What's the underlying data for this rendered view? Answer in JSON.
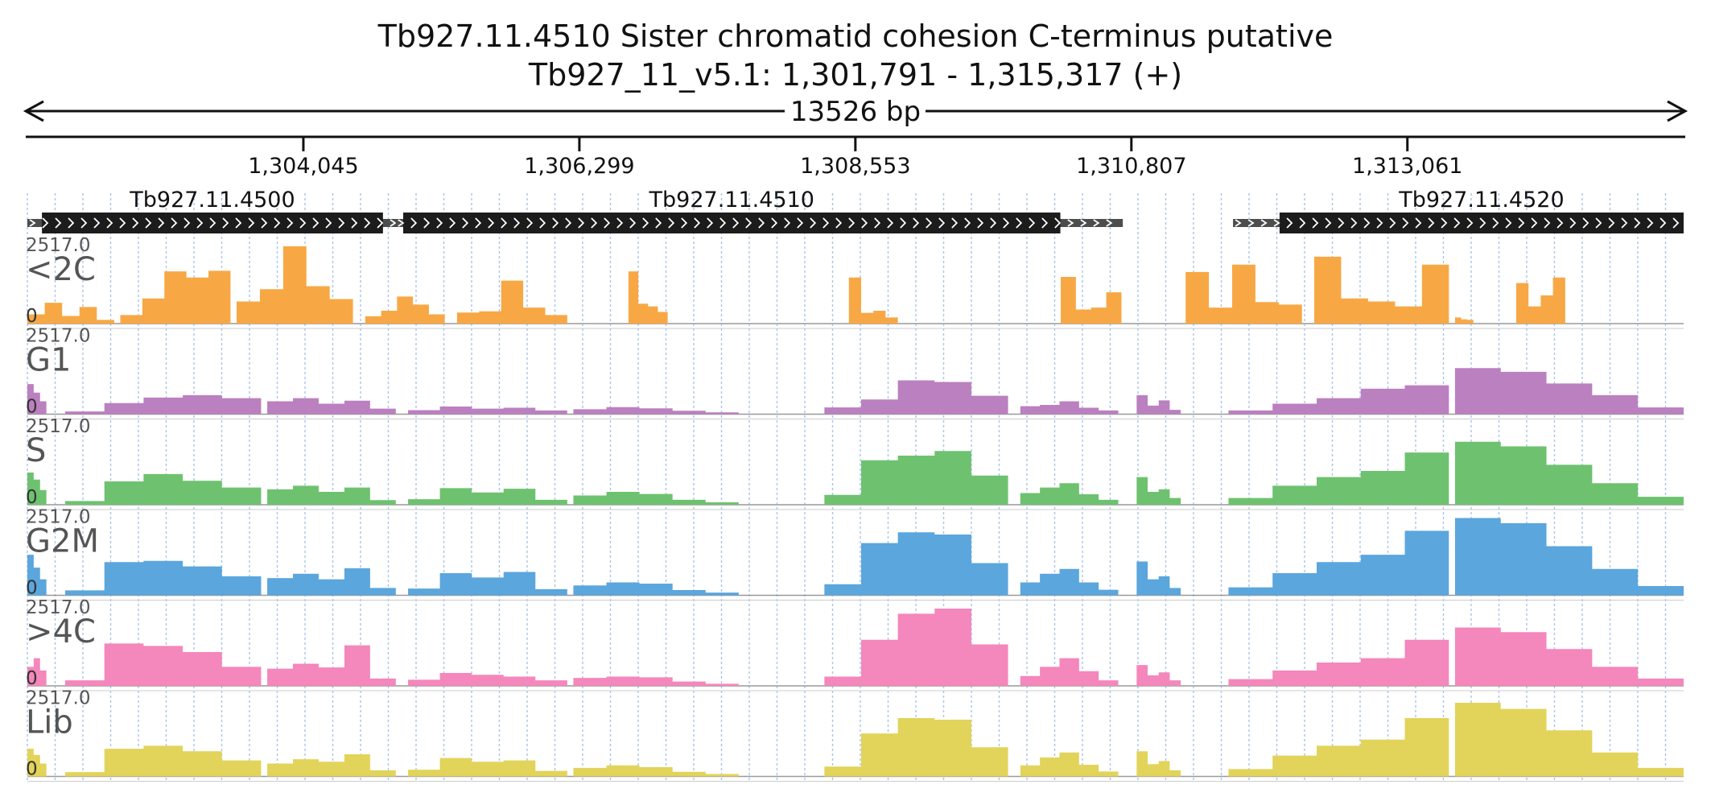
{
  "chart_data": {
    "type": "area",
    "title": "Tb927.11.4510  Sister chromatid cohesion C-terminus  putative",
    "subtitle": "Tb927_11_v5.1: 1,301,791 - 1,315,317 (+)",
    "span_label": "13526 bp",
    "region": {
      "start": 1301791,
      "end": 1315317
    },
    "ticks": [
      {
        "pos": 1304045,
        "label": "1,304,045"
      },
      {
        "pos": 1306299,
        "label": "1,306,299"
      },
      {
        "pos": 1308553,
        "label": "1,308,553"
      },
      {
        "pos": 1310807,
        "label": "1,310,807"
      },
      {
        "pos": 1313061,
        "label": "1,313,061"
      }
    ],
    "genes": [
      {
        "name": "Tb927.11.4500",
        "cds_start": 1301910,
        "cds_end": 1304695,
        "utr_start": 1301791,
        "utr_end": 1304900
      },
      {
        "name": "Tb927.11.4510",
        "cds_start": 1304860,
        "cds_end": 1310227,
        "utr_start": 1304800,
        "utr_end": 1310737
      },
      {
        "name": "Tb927.11.4520",
        "cds_start": 1312017,
        "cds_end": 1315317,
        "utr_start": 1311637,
        "utr_end": 1315317
      }
    ],
    "y_scale_max_label": "2517.0",
    "y_scale_min_label": "0",
    "grid": true,
    "segment_starts": [
      1301791,
      1302200,
      1302750,
      1303300,
      1304000,
      1304700,
      1305400,
      1306100,
      1307200,
      1307700,
      1308100,
      1308800,
      1309500,
      1310250,
      1310750,
      1311550,
      1312300,
      1312900,
      1313600,
      1314250,
      1314900
    ],
    "series": [
      {
        "name": "<2C",
        "color": "#f7a844",
        "segments": [
          {
            "start": 1301791,
            "end": 1302500,
            "values": [
              300,
              680,
              250,
              540,
              120
            ]
          },
          {
            "start": 1302550,
            "end": 1303450,
            "values": [
              280,
              820,
              1700,
              1500,
              1720
            ]
          },
          {
            "start": 1303500,
            "end": 1304450,
            "values": [
              720,
              1120,
              2517,
              1220,
              800
            ]
          },
          {
            "start": 1304550,
            "end": 1305200,
            "values": [
              240,
              420,
              880,
              620,
              300
            ]
          },
          {
            "start": 1305300,
            "end": 1306200,
            "values": [
              360,
              400,
              1400,
              520,
              280
            ]
          },
          {
            "start": 1306700,
            "end": 1307100,
            "values": [
              1700,
              650,
              560,
              380,
              0
            ]
          },
          {
            "start": 1308500,
            "end": 1309000,
            "values": [
              1500,
              350,
              420,
              200,
              0
            ]
          },
          {
            "start": 1310230,
            "end": 1310850,
            "values": [
              1520,
              460,
              520,
              1020,
              0
            ]
          },
          {
            "start": 1311250,
            "end": 1312200,
            "values": [
              1680,
              520,
              1920,
              700,
              620
            ]
          },
          {
            "start": 1312300,
            "end": 1313400,
            "values": [
              2180,
              820,
              720,
              560,
              1920
            ]
          },
          {
            "start": 1313450,
            "end": 1313700,
            "values": [
              200,
              140,
              120,
              0,
              0
            ]
          },
          {
            "start": 1313950,
            "end": 1314450,
            "values": [
              1320,
              560,
              920,
              1500,
              0
            ]
          }
        ]
      },
      {
        "name": "G1",
        "color": "#bb80bf",
        "segments": [
          {
            "start": 1301791,
            "end": 1302050,
            "values": [
              980,
              700,
              420,
              0,
              0
            ]
          },
          {
            "start": 1302100,
            "end": 1303700,
            "values": [
              90,
              360,
              540,
              620,
              520
            ]
          },
          {
            "start": 1303750,
            "end": 1304800,
            "values": [
              420,
              520,
              340,
              440,
              180
            ]
          },
          {
            "start": 1304900,
            "end": 1306200,
            "values": [
              130,
              250,
              180,
              210,
              120
            ]
          },
          {
            "start": 1306250,
            "end": 1307600,
            "values": [
              160,
              230,
              190,
              110,
              60
            ]
          },
          {
            "start": 1308300,
            "end": 1309800,
            "values": [
              220,
              480,
              1100,
              1050,
              600
            ]
          },
          {
            "start": 1309900,
            "end": 1310700,
            "values": [
              260,
              300,
              420,
              210,
              120
            ]
          },
          {
            "start": 1310850,
            "end": 1311300,
            "values": [
              620,
              280,
              450,
              140,
              0
            ]
          },
          {
            "start": 1311600,
            "end": 1313400,
            "values": [
              120,
              340,
              520,
              830,
              940
            ]
          },
          {
            "start": 1313450,
            "end": 1315317,
            "values": [
              1500,
              1380,
              1000,
              620,
              220
            ]
          }
        ]
      },
      {
        "name": "S",
        "color": "#6ec26f",
        "segments": [
          {
            "start": 1301791,
            "end": 1302050,
            "values": [
              1050,
              820,
              480,
              0,
              0
            ]
          },
          {
            "start": 1302100,
            "end": 1303700,
            "values": [
              120,
              760,
              1000,
              780,
              560
            ]
          },
          {
            "start": 1303750,
            "end": 1304800,
            "values": [
              500,
              620,
              420,
              560,
              150
            ]
          },
          {
            "start": 1304900,
            "end": 1306200,
            "values": [
              180,
              540,
              400,
              520,
              160
            ]
          },
          {
            "start": 1306250,
            "end": 1307600,
            "values": [
              300,
              420,
              350,
              160,
              80
            ]
          },
          {
            "start": 1308300,
            "end": 1309800,
            "values": [
              320,
              1450,
              1600,
              1750,
              950
            ]
          },
          {
            "start": 1309900,
            "end": 1310700,
            "values": [
              380,
              560,
              700,
              340,
              160
            ]
          },
          {
            "start": 1310850,
            "end": 1311300,
            "values": [
              900,
              420,
              500,
              220,
              0
            ]
          },
          {
            "start": 1311600,
            "end": 1313400,
            "values": [
              220,
              620,
              900,
              1100,
              1700
            ]
          },
          {
            "start": 1313450,
            "end": 1315317,
            "values": [
              2050,
              1900,
              1300,
              700,
              260
            ]
          }
        ]
      },
      {
        "name": "G2M",
        "color": "#5ba6dd",
        "segments": [
          {
            "start": 1301791,
            "end": 1302050,
            "values": [
              1320,
              900,
              520,
              0,
              0
            ]
          },
          {
            "start": 1302100,
            "end": 1303700,
            "values": [
              160,
              1080,
              1120,
              940,
              620
            ]
          },
          {
            "start": 1303750,
            "end": 1304800,
            "values": [
              560,
              700,
              520,
              880,
              240
            ]
          },
          {
            "start": 1304900,
            "end": 1306200,
            "values": [
              220,
              720,
              580,
              760,
              200
            ]
          },
          {
            "start": 1306250,
            "end": 1307600,
            "values": [
              320,
              420,
              380,
              170,
              90
            ]
          },
          {
            "start": 1308300,
            "end": 1309800,
            "values": [
              360,
              1700,
              2050,
              1980,
              1050
            ]
          },
          {
            "start": 1309900,
            "end": 1310700,
            "values": [
              420,
              700,
              860,
              420,
              180
            ]
          },
          {
            "start": 1310850,
            "end": 1311300,
            "values": [
              1100,
              520,
              620,
              240,
              0
            ]
          },
          {
            "start": 1311600,
            "end": 1313400,
            "values": [
              260,
              720,
              1080,
              1320,
              2100
            ]
          },
          {
            "start": 1313450,
            "end": 1315317,
            "values": [
              2517,
              2350,
              1600,
              860,
              300
            ]
          }
        ]
      },
      {
        "name": ">4C",
        "color": "#f487bc",
        "segments": [
          {
            "start": 1301791,
            "end": 1302050,
            "values": [
              620,
              900,
              500,
              0,
              0
            ]
          },
          {
            "start": 1302100,
            "end": 1303700,
            "values": [
              180,
              1380,
              1300,
              1100,
              620
            ]
          },
          {
            "start": 1303750,
            "end": 1304800,
            "values": [
              560,
              720,
              600,
              1320,
              240
            ]
          },
          {
            "start": 1304900,
            "end": 1306200,
            "values": [
              200,
              420,
              360,
              300,
              180
            ]
          },
          {
            "start": 1306250,
            "end": 1307600,
            "values": [
              260,
              300,
              280,
              140,
              70
            ]
          },
          {
            "start": 1308300,
            "end": 1309800,
            "values": [
              300,
              1500,
              2350,
              2517,
              1350
            ]
          },
          {
            "start": 1309900,
            "end": 1310700,
            "values": [
              320,
              620,
              900,
              480,
              180
            ]
          },
          {
            "start": 1310850,
            "end": 1311300,
            "values": [
              680,
              340,
              440,
              180,
              0
            ]
          },
          {
            "start": 1311600,
            "end": 1313400,
            "values": [
              220,
              500,
              760,
              900,
              1500
            ]
          },
          {
            "start": 1313450,
            "end": 1315317,
            "values": [
              1900,
              1750,
              1200,
              620,
              240
            ]
          }
        ]
      },
      {
        "name": "Lib",
        "color": "#e2d45a",
        "segments": [
          {
            "start": 1301791,
            "end": 1302050,
            "values": [
              900,
              700,
              420,
              0,
              0
            ]
          },
          {
            "start": 1302100,
            "end": 1303700,
            "values": [
              140,
              900,
              1000,
              820,
              520
            ]
          },
          {
            "start": 1303750,
            "end": 1304800,
            "values": [
              420,
              560,
              480,
              720,
              200
            ]
          },
          {
            "start": 1304900,
            "end": 1306200,
            "values": [
              220,
              600,
              480,
              520,
              180
            ]
          },
          {
            "start": 1306250,
            "end": 1307600,
            "values": [
              280,
              360,
              300,
              150,
              80
            ]
          },
          {
            "start": 1308300,
            "end": 1309800,
            "values": [
              320,
              1400,
              1900,
              1850,
              950
            ]
          },
          {
            "start": 1309900,
            "end": 1310700,
            "values": [
              360,
              620,
              780,
              380,
              160
            ]
          },
          {
            "start": 1310850,
            "end": 1311300,
            "values": [
              820,
              400,
              500,
              200,
              0
            ]
          },
          {
            "start": 1311600,
            "end": 1313400,
            "values": [
              240,
              680,
              1000,
              1200,
              1900
            ]
          },
          {
            "start": 1313450,
            "end": 1315317,
            "values": [
              2400,
              2200,
              1500,
              780,
              280
            ]
          }
        ]
      }
    ]
  }
}
